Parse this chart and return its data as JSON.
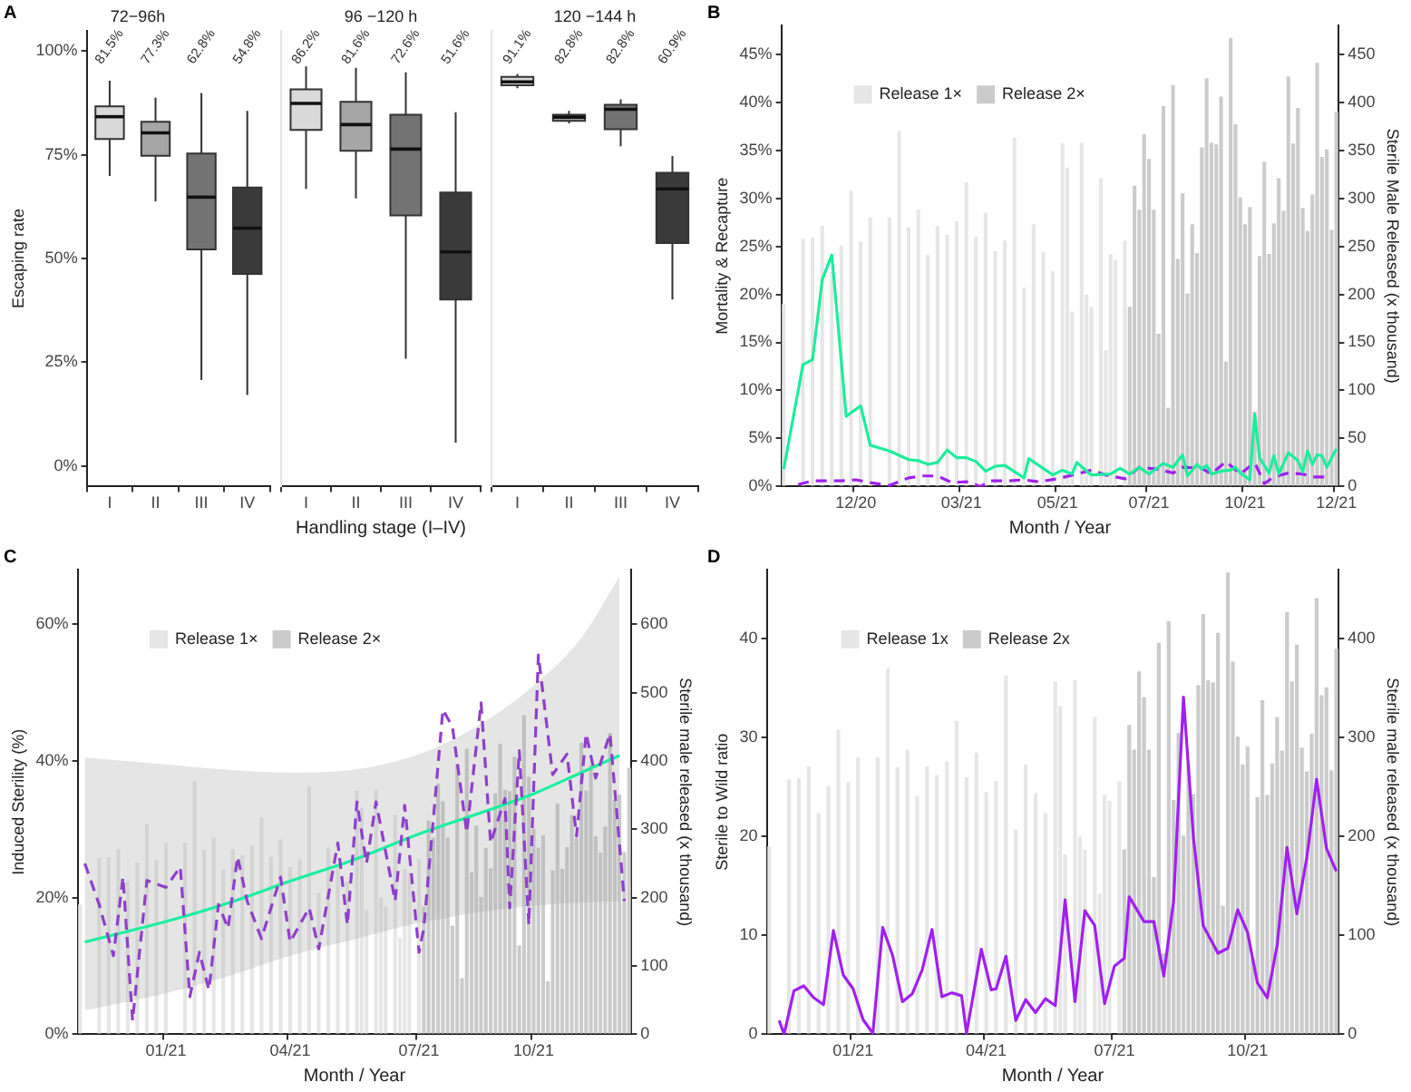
{
  "chart_data": [
    {
      "type": "box",
      "title": "72−96h",
      "annotations": [
        "A"
      ],
      "ylabel": "Escaping rate",
      "categories": [
        "I",
        "II",
        "III",
        "IV"
      ],
      "colors": [
        "#d9d9d9",
        "#a6a6a6",
        "#737373",
        "#3a3a3a"
      ],
      "ylim": [
        -5,
        105
      ],
      "yticks": [
        {
          "value": 0,
          "label": "0%"
        },
        {
          "value": 25,
          "label": "25%"
        },
        {
          "value": 50,
          "label": "50%"
        },
        {
          "value": 75,
          "label": "75%"
        },
        {
          "value": 100,
          "label": "100%"
        }
      ],
      "value_labels": [
        "81.5%",
        "77.3%",
        "62.8%",
        "54.8%"
      ],
      "boxes": [
        {
          "low": 69.9,
          "q1": 78.8,
          "median": 84.2,
          "q3": 86.7,
          "high": 92.9
        },
        {
          "low": 63.8,
          "q1": 74.8,
          "median": 80.3,
          "q3": 83,
          "high": 88.8
        },
        {
          "low": 20.7,
          "q1": 52.2,
          "median": 64.8,
          "q3": 75.3,
          "high": 89.9
        },
        {
          "low": 17.1,
          "q1": 46.3,
          "median": 57.3,
          "q3": 67.1,
          "high": 85.6
        }
      ]
    },
    {
      "type": "box",
      "title": "96 −120 h",
      "xlabel": "Handling stage (I–IV)",
      "tick_labels": "x",
      "categories": [
        "I",
        "II",
        "III",
        "IV"
      ],
      "colors": [
        "#d9d9d9",
        "#a6a6a6",
        "#737373",
        "#3a3a3a"
      ],
      "ylim": [
        -5,
        105
      ],
      "value_labels": [
        "86.2%",
        "81.6%",
        "72.6%",
        "51.6%"
      ],
      "boxes": [
        {
          "low": 66.8,
          "q1": 81,
          "median": 87.4,
          "q3": 90.8,
          "high": 96.3
        },
        {
          "low": 64.5,
          "q1": 76,
          "median": 82.3,
          "q3": 87.8,
          "high": 96
        },
        {
          "low": 25.8,
          "q1": 60.4,
          "median": 76.4,
          "q3": 84.7,
          "high": 94.9
        },
        {
          "low": 5.6,
          "q1": 40.1,
          "median": 51.6,
          "q3": 65.9,
          "high": 85.3
        }
      ]
    },
    {
      "type": "box",
      "title": "120 −144 h",
      "tick_labels": "x",
      "categories": [
        "I",
        "II",
        "III",
        "IV"
      ],
      "colors": [
        "#d9d9d9",
        "#a6a6a6",
        "#737373",
        "#3a3a3a"
      ],
      "ylim": [
        -5,
        105
      ],
      "value_labels": [
        "91.1%",
        "82.8%",
        "82.8%",
        "60.9%"
      ],
      "boxes": [
        {
          "low": 91.1,
          "q1": 91.8,
          "median": 92.6,
          "q3": 93.8,
          "high": 94.5
        },
        {
          "low": 82.6,
          "q1": 83.2,
          "median": 84.1,
          "q3": 84.7,
          "high": 85.6
        },
        {
          "low": 77.1,
          "q1": 81.2,
          "median": 86,
          "q3": 87.1,
          "high": 88.4
        },
        {
          "low": 40.1,
          "q1": 53.7,
          "median": 66.8,
          "q3": 70.7,
          "high": 74.7
        }
      ]
    },
    {
      "type": "bar",
      "annotations": [
        "B"
      ],
      "xlabel": "Month / Year",
      "ylabel": "Mortality & Recapture",
      "y2label": "Sterile Male Released (x thousand)",
      "legend": "top left",
      "ylim": [
        0,
        48
      ],
      "yticks": [
        {
          "value": 0,
          "label": "0%"
        },
        {
          "value": 5,
          "label": "5%"
        },
        {
          "value": 10,
          "label": "10%"
        },
        {
          "value": 15,
          "label": "15%"
        },
        {
          "value": 20,
          "label": "20%"
        },
        {
          "value": 25,
          "label": "25%"
        },
        {
          "value": 30,
          "label": "30%"
        },
        {
          "value": 35,
          "label": "35%"
        },
        {
          "value": 40,
          "label": "40%"
        },
        {
          "value": 45,
          "label": "45%"
        }
      ],
      "y2lim": [
        0,
        480
      ],
      "y2ticks": [
        0,
        50,
        100,
        150,
        200,
        250,
        300,
        350,
        400,
        450
      ],
      "categories": [
        null,
        null,
        null,
        null,
        null,
        null,
        null,
        null,
        null,
        null,
        null,
        null,
        null,
        null,
        null,
        "12/20",
        null,
        null,
        null,
        null,
        null,
        null,
        null,
        null,
        null,
        null,
        null,
        null,
        null,
        null,
        null,
        null,
        null,
        null,
        null,
        null,
        null,
        "03/21",
        null,
        null,
        null,
        null,
        null,
        null,
        null,
        null,
        null,
        null,
        null,
        null,
        null,
        null,
        null,
        null,
        null,
        null,
        null,
        "05/21",
        null,
        null,
        null,
        null,
        null,
        null,
        null,
        null,
        null,
        null,
        null,
        null,
        null,
        null,
        null,
        null,
        null,
        null,
        "07/21",
        null,
        null,
        null,
        null,
        null,
        null,
        null,
        null,
        null,
        null,
        null,
        null,
        null,
        null,
        null,
        null,
        null,
        null,
        null,
        "10/21",
        null,
        null,
        null,
        null,
        null,
        null,
        null,
        null,
        null,
        null,
        null,
        null,
        null,
        null,
        null,
        null,
        null,
        null,
        "12/21"
      ],
      "series": [
        {
          "name": "Release 1×",
          "type": "bar",
          "axis": "y2",
          "color": "#e6e6e6",
          "values": [
            190,
            null,
            null,
            null,
            258,
            null,
            259,
            null,
            271,
            null,
            224,
            null,
            251,
            null,
            308,
            null,
            255,
            null,
            280,
            null,
            null,
            null,
            280,
            null,
            370,
            null,
            270,
            null,
            288,
            null,
            241,
            null,
            271,
            null,
            262,
            null,
            276,
            null,
            317,
            null,
            260,
            null,
            285,
            null,
            245,
            null,
            256,
            null,
            363,
            null,
            207,
            null,
            273,
            null,
            244,
            null,
            224,
            null,
            357,
            332,
            182,
            null,
            358,
            200,
            187,
            null,
            321,
            142,
            242,
            236,
            null,
            256,
            null,
            null,
            null,
            null,
            null,
            null,
            null,
            null,
            null,
            null,
            null,
            null,
            null,
            null,
            null,
            null,
            null,
            null,
            null,
            null,
            null,
            null,
            null,
            null,
            null,
            null,
            null,
            null,
            null,
            null,
            null,
            null,
            null,
            null,
            null,
            null,
            null,
            null,
            null,
            null,
            null,
            null,
            null,
            null
          ]
        },
        {
          "name": "Release 2×",
          "type": "bar",
          "axis": "y2",
          "color": "#cbcbcb",
          "values": [
            null,
            null,
            null,
            null,
            null,
            null,
            null,
            null,
            null,
            null,
            null,
            null,
            null,
            null,
            null,
            null,
            null,
            null,
            null,
            null,
            null,
            null,
            null,
            null,
            null,
            null,
            null,
            null,
            null,
            null,
            null,
            null,
            null,
            null,
            null,
            null,
            null,
            null,
            null,
            null,
            null,
            null,
            null,
            null,
            null,
            null,
            null,
            null,
            null,
            null,
            null,
            null,
            null,
            null,
            null,
            null,
            null,
            null,
            null,
            null,
            null,
            null,
            null,
            null,
            null,
            null,
            null,
            null,
            null,
            null,
            null,
            null,
            187,
            313,
            288,
            367,
            341,
            288,
            159,
            396,
            82,
            418,
            237,
            305,
            201,
            273,
            243,
            353,
            425,
            358,
            356,
            406,
            130,
            467,
            377,
            301,
            273,
            291,
            78,
            240,
            338,
            242,
            274,
            321,
            287,
            427,
            357,
            394,
            290,
            266,
            304,
            441,
            343,
            351,
            267,
            390
          ]
        },
        {
          "type": "line",
          "color": "#1ded9c",
          "values": [
            1.8,
            null,
            null,
            null,
            12.7,
            null,
            13.2,
            null,
            21.5,
            null,
            24.1,
            null,
            null,
            7.3,
            null,
            null,
            8.4,
            null,
            4.3,
            null,
            null,
            null,
            3.7,
            null,
            null,
            null,
            2.8,
            null,
            2.7,
            null,
            2.3,
            null,
            2.5,
            null,
            3.8,
            null,
            3.0,
            null,
            3.0,
            null,
            2.6,
            null,
            1.6,
            null,
            2.1,
            null,
            2.2,
            null,
            null,
            null,
            0.9,
            2.9,
            null,
            null,
            null,
            null,
            1.2,
            null,
            1.7,
            null,
            1.3,
            2.5,
            null,
            null,
            1.2,
            null,
            null,
            null,
            1.3,
            null,
            1.9,
            null,
            1.3,
            null,
            2.0,
            null,
            1.3,
            null,
            null,
            2.4,
            null,
            2.0,
            null,
            3.3,
            1.1,
            null,
            2.3,
            1.8,
            2.2,
            1.3,
            null,
            1.6,
            null,
            1.7,
            2.0,
            1.4,
            null,
            0.7,
            7.5,
            3.0,
            null,
            1.4,
            3.2,
            1.3,
            null,
            3.5,
            null,
            2.7,
            1.5,
            3.7,
            2.3,
            3.3,
            3.2,
            2.0,
            null,
            3.9
          ]
        },
        {
          "type": "line",
          "color": "#a020f0",
          "line_style": "dashed",
          "values": [
            null,
            null,
            null,
            0.2,
            null,
            null,
            0.6,
            null,
            null,
            0.6,
            null,
            null,
            0.6,
            null,
            null,
            0.7,
            null,
            null,
            0.4,
            null,
            null,
            null,
            0.1,
            null,
            null,
            null,
            0.9,
            null,
            null,
            1.1,
            null,
            null,
            1.1,
            null,
            null,
            0.4,
            null,
            null,
            0.5,
            null,
            null,
            0.0,
            null,
            0.6,
            null,
            null,
            null,
            0.6,
            null,
            null,
            0.7,
            null,
            null,
            0.5,
            null,
            null,
            null,
            0.8,
            null,
            null,
            null,
            1.3,
            null,
            null,
            1.7,
            null,
            null,
            1.2,
            null,
            null,
            null,
            0.8,
            null,
            null,
            2.0,
            null,
            null,
            null,
            1.8,
            null,
            null,
            1.4,
            null,
            2.0,
            null,
            null,
            null,
            1.9,
            null,
            1.3,
            null,
            null,
            2.6,
            null,
            null,
            1.3,
            null,
            null,
            2.5,
            null,
            0.3,
            null,
            1.0,
            null,
            null,
            1.4,
            null,
            null,
            1.3,
            null,
            1.0,
            null,
            null,
            1.0,
            null,
            null
          ]
        }
      ]
    },
    {
      "type": "bar",
      "annotations": [
        "C"
      ],
      "xlabel": "Month / Year",
      "ylabel": "Induced Sterility (%)",
      "y2label": "Sterile male released (x thousand)",
      "legend": "top left",
      "ylim": [
        0,
        68
      ],
      "yticks": [
        {
          "value": 0,
          "label": "0%"
        },
        {
          "value": 20,
          "label": "20%"
        },
        {
          "value": 40,
          "label": "40%"
        },
        {
          "value": 60,
          "label": "60%"
        }
      ],
      "y2lim": [
        0,
        680
      ],
      "y2ticks": [
        0,
        100,
        200,
        300,
        400,
        500,
        600
      ],
      "categories": [
        null,
        null,
        null,
        null,
        null,
        null,
        null,
        null,
        null,
        null,
        null,
        null,
        null,
        null,
        null,
        null,
        null,
        null,
        "01/21",
        null,
        null,
        null,
        null,
        null,
        null,
        null,
        null,
        null,
        null,
        null,
        null,
        null,
        null,
        null,
        null,
        null,
        null,
        null,
        null,
        null,
        null,
        null,
        null,
        null,
        "04/21",
        null,
        null,
        null,
        null,
        null,
        null,
        null,
        null,
        null,
        null,
        null,
        null,
        null,
        null,
        null,
        null,
        null,
        null,
        null,
        null,
        null,
        null,
        null,
        null,
        null,
        null,
        "07/21",
        null,
        null,
        null,
        null,
        null,
        null,
        null,
        null,
        null,
        null,
        null,
        null,
        null,
        null,
        null,
        null,
        null,
        null,
        null,
        null,
        null,
        null,
        null,
        "10/21",
        null,
        null,
        null,
        null,
        null,
        null,
        null,
        null,
        null,
        null,
        null,
        null,
        null,
        null,
        null,
        null,
        null,
        null,
        null,
        null
      ],
      "series": [
        {
          "name": "Release 1×",
          "type": "bar",
          "axis": "y2",
          "color": "#e6e6e6",
          "values": [
            190,
            null,
            null,
            null,
            258,
            null,
            259,
            null,
            271,
            null,
            224,
            null,
            251,
            null,
            308,
            null,
            255,
            null,
            280,
            null,
            null,
            null,
            280,
            null,
            370,
            null,
            270,
            null,
            288,
            null,
            241,
            null,
            271,
            null,
            262,
            null,
            276,
            null,
            317,
            null,
            260,
            null,
            285,
            null,
            245,
            null,
            256,
            null,
            363,
            null,
            207,
            null,
            273,
            null,
            244,
            null,
            224,
            null,
            357,
            332,
            182,
            null,
            358,
            200,
            187,
            null,
            321,
            142,
            242,
            236,
            null,
            256,
            null,
            null,
            null,
            null,
            null,
            null,
            null,
            null,
            null,
            null,
            null,
            null,
            null,
            null,
            null,
            null,
            null,
            null,
            null,
            null,
            null,
            null,
            null,
            null,
            null,
            null,
            null,
            null,
            null,
            null,
            null,
            null,
            null,
            null,
            null,
            null,
            null,
            null,
            null,
            null,
            null,
            null,
            null,
            null
          ]
        },
        {
          "name": "Release 2×",
          "type": "bar",
          "axis": "y2",
          "color": "#cbcbcb",
          "values": [
            null,
            null,
            null,
            null,
            null,
            null,
            null,
            null,
            null,
            null,
            null,
            null,
            null,
            null,
            null,
            null,
            null,
            null,
            null,
            null,
            null,
            null,
            null,
            null,
            null,
            null,
            null,
            null,
            null,
            null,
            null,
            null,
            null,
            null,
            null,
            null,
            null,
            null,
            null,
            null,
            null,
            null,
            null,
            null,
            null,
            null,
            null,
            null,
            null,
            null,
            null,
            null,
            null,
            null,
            null,
            null,
            null,
            null,
            null,
            null,
            null,
            null,
            null,
            null,
            null,
            null,
            null,
            null,
            null,
            null,
            null,
            null,
            187,
            313,
            288,
            367,
            341,
            288,
            159,
            396,
            82,
            418,
            237,
            305,
            201,
            273,
            243,
            353,
            425,
            358,
            356,
            406,
            130,
            467,
            377,
            301,
            273,
            291,
            78,
            240,
            338,
            242,
            274,
            321,
            287,
            427,
            357,
            394,
            290,
            266,
            304,
            441,
            343,
            351,
            267,
            390
          ]
        },
        {
          "type": "line",
          "color": "#8f3fc9",
          "line_style": "dashed",
          "values": [
            null,
            25,
            null,
            null,
            19,
            null,
            null,
            11.5,
            null,
            23,
            null,
            2,
            null,
            null,
            22.5,
            null,
            null,
            null,
            21.5,
            null,
            null,
            24.5,
            null,
            5.5,
            null,
            12,
            null,
            6.5,
            null,
            19,
            null,
            15.5,
            null,
            26,
            null,
            19.5,
            null,
            null,
            14,
            null,
            null,
            null,
            23,
            null,
            13.5,
            null,
            null,
            null,
            18.5,
            null,
            12.5,
            null,
            null,
            null,
            28,
            null,
            16,
            null,
            34,
            null,
            25,
            null,
            34,
            null,
            null,
            null,
            19.5,
            null,
            33.5,
            null,
            null,
            12,
            15.5,
            null,
            null,
            null,
            47.5,
            null,
            45,
            null,
            null,
            29.5,
            null,
            null,
            48.5,
            null,
            28,
            null,
            null,
            34.5,
            18.5,
            null,
            41.5,
            null,
            16,
            null,
            55.5,
            null,
            null,
            38,
            null,
            null,
            41,
            null,
            29,
            null,
            44,
            null,
            37.5,
            null,
            null,
            44,
            null,
            null,
            19.5,
            null
          ]
        },
        {
          "type": "line",
          "color": "#19f0a0",
          "values": [
            null,
            13.5,
            null,
            null,
            null,
            null,
            null,
            null,
            null,
            null,
            null,
            null,
            null,
            null,
            null,
            null,
            null,
            null,
            16.5,
            null,
            null,
            null,
            null,
            null,
            null,
            null,
            null,
            null,
            null,
            null,
            null,
            19.2,
            null,
            null,
            null,
            null,
            null,
            null,
            null,
            null,
            null,
            null,
            null,
            null,
            22.4,
            null,
            null,
            null,
            null,
            null,
            null,
            null,
            null,
            null,
            null,
            null,
            null,
            null,
            25.7,
            null,
            null,
            null,
            null,
            null,
            null,
            null,
            null,
            null,
            null,
            null,
            null,
            29.3,
            null,
            null,
            null,
            null,
            null,
            null,
            null,
            null,
            null,
            null,
            null,
            32.2,
            null,
            null,
            null,
            null,
            null,
            null,
            null,
            null,
            null,
            null,
            null,
            35.2,
            null,
            null,
            null,
            null,
            null,
            null,
            null,
            null,
            null,
            38.3,
            null,
            null,
            null,
            null,
            null,
            null,
            null,
            40.8,
            null,
            null
          ],
          "lower": [
            null,
            3.5,
            null,
            null,
            null,
            null,
            null,
            null,
            null,
            null,
            null,
            null,
            null,
            null,
            null,
            null,
            null,
            null,
            6,
            null,
            null,
            null,
            null,
            null,
            null,
            null,
            null,
            null,
            null,
            null,
            null,
            8.5,
            null,
            null,
            null,
            null,
            null,
            null,
            null,
            null,
            null,
            null,
            null,
            null,
            11.5,
            null,
            null,
            null,
            null,
            null,
            null,
            null,
            null,
            null,
            null,
            null,
            null,
            null,
            14,
            null,
            null,
            null,
            null,
            null,
            null,
            null,
            null,
            null,
            null,
            null,
            null,
            16.3,
            null,
            null,
            null,
            null,
            null,
            null,
            null,
            null,
            null,
            null,
            null,
            17.8,
            null,
            null,
            null,
            null,
            null,
            null,
            null,
            null,
            null,
            null,
            null,
            18.8,
            null,
            null,
            null,
            null,
            null,
            null,
            null,
            null,
            null,
            19.3,
            null,
            null,
            null,
            null,
            null,
            null,
            null,
            19.5,
            null,
            null
          ],
          "upper": [
            null,
            40.5,
            null,
            null,
            null,
            null,
            null,
            null,
            null,
            null,
            null,
            null,
            null,
            null,
            null,
            null,
            null,
            null,
            39.5,
            null,
            null,
            null,
            null,
            null,
            null,
            null,
            null,
            null,
            null,
            null,
            null,
            38.7,
            null,
            null,
            null,
            null,
            null,
            null,
            null,
            null,
            null,
            null,
            null,
            null,
            38.3,
            null,
            null,
            null,
            null,
            null,
            null,
            null,
            null,
            null,
            null,
            null,
            null,
            null,
            38.8,
            null,
            null,
            null,
            null,
            null,
            null,
            null,
            null,
            null,
            null,
            null,
            null,
            41,
            null,
            null,
            null,
            null,
            null,
            null,
            null,
            null,
            null,
            null,
            null,
            45,
            null,
            null,
            null,
            null,
            null,
            null,
            null,
            null,
            null,
            null,
            null,
            51,
            null,
            null,
            null,
            null,
            null,
            null,
            null,
            null,
            null,
            58,
            null,
            null,
            null,
            null,
            null,
            null,
            null,
            67,
            null,
            null
          ]
        }
      ]
    },
    {
      "type": "bar",
      "annotations": [
        "D"
      ],
      "xlabel": "Month / Year",
      "ylabel": "Sterile to Wild ratio",
      "y2label": "Sterile male released (x thousand)",
      "legend": "top left",
      "ylim": [
        0,
        47
      ],
      "yticks": [
        0,
        10,
        20,
        30,
        40
      ],
      "y2lim": [
        0,
        470
      ],
      "y2ticks": [
        0,
        100,
        200,
        300,
        400
      ],
      "categories": [
        null,
        null,
        null,
        null,
        null,
        null,
        null,
        null,
        null,
        null,
        null,
        null,
        null,
        null,
        null,
        null,
        null,
        "01/21",
        null,
        null,
        null,
        null,
        null,
        null,
        null,
        null,
        null,
        null,
        null,
        null,
        null,
        null,
        null,
        null,
        null,
        null,
        null,
        null,
        null,
        null,
        null,
        null,
        null,
        null,
        "04/21",
        null,
        null,
        null,
        null,
        null,
        null,
        null,
        null,
        null,
        null,
        null,
        null,
        null,
        null,
        null,
        null,
        null,
        null,
        null,
        null,
        null,
        null,
        null,
        null,
        null,
        "07/21",
        null,
        null,
        null,
        null,
        null,
        null,
        null,
        null,
        null,
        null,
        null,
        null,
        null,
        null,
        null,
        null,
        null,
        null,
        null,
        null,
        null,
        null,
        null,
        null,
        null,
        null,
        "10/21",
        null,
        null,
        null,
        null,
        null,
        null,
        null,
        null,
        null,
        null,
        null,
        null,
        null,
        null,
        null,
        null,
        null,
        null
      ],
      "series": [
        {
          "name": "Release 1x",
          "type": "bar",
          "axis": "y2",
          "color": "#e6e6e6",
          "values": [
            190,
            null,
            null,
            null,
            258,
            null,
            259,
            null,
            271,
            null,
            224,
            null,
            251,
            null,
            308,
            null,
            255,
            null,
            280,
            null,
            null,
            null,
            280,
            null,
            370,
            null,
            270,
            null,
            288,
            null,
            241,
            null,
            271,
            null,
            262,
            null,
            276,
            null,
            317,
            null,
            260,
            null,
            285,
            null,
            245,
            null,
            256,
            null,
            363,
            null,
            207,
            null,
            273,
            null,
            244,
            null,
            224,
            null,
            357,
            332,
            182,
            null,
            358,
            200,
            187,
            null,
            321,
            142,
            242,
            236,
            null,
            256,
            null,
            null,
            null,
            null,
            null,
            null,
            null,
            null,
            null,
            null,
            null,
            null,
            null,
            null,
            null,
            null,
            null,
            null,
            null,
            null,
            null,
            null,
            null,
            null,
            null,
            null,
            null,
            null,
            null,
            null,
            null,
            null,
            null,
            null,
            null,
            null,
            null,
            null,
            null,
            null,
            null,
            null,
            null,
            null
          ]
        },
        {
          "name": "Release 2x",
          "type": "bar",
          "axis": "y2",
          "color": "#cbcbcb",
          "values": [
            null,
            null,
            null,
            null,
            null,
            null,
            null,
            null,
            null,
            null,
            null,
            null,
            null,
            null,
            null,
            null,
            null,
            null,
            null,
            null,
            null,
            null,
            null,
            null,
            null,
            null,
            null,
            null,
            null,
            null,
            null,
            null,
            null,
            null,
            null,
            null,
            null,
            null,
            null,
            null,
            null,
            null,
            null,
            null,
            null,
            null,
            null,
            null,
            null,
            null,
            null,
            null,
            null,
            null,
            null,
            null,
            null,
            null,
            null,
            null,
            null,
            null,
            null,
            null,
            null,
            null,
            null,
            null,
            null,
            null,
            null,
            null,
            187,
            313,
            288,
            367,
            341,
            288,
            159,
            396,
            82,
            418,
            237,
            305,
            201,
            273,
            243,
            353,
            425,
            358,
            356,
            406,
            130,
            467,
            377,
            301,
            273,
            291,
            78,
            240,
            338,
            242,
            274,
            321,
            287,
            427,
            357,
            394,
            290,
            266,
            304,
            441,
            343,
            351,
            267,
            390
          ]
        },
        {
          "type": "line",
          "color": "#a020f0",
          "values": [
            null,
            null,
            1.4,
            0,
            null,
            4.4,
            null,
            4.9,
            null,
            3.7,
            null,
            3.0,
            null,
            10.5,
            null,
            6.0,
            null,
            4.6,
            null,
            1.5,
            null,
            0.1,
            null,
            10.8,
            null,
            8.0,
            null,
            3.3,
            null,
            4.1,
            null,
            6.5,
            null,
            10.6,
            null,
            3.8,
            null,
            4.2,
            null,
            3.9,
            0.1,
            null,
            null,
            8.6,
            null,
            4.5,
            4.6,
            null,
            7.9,
            null,
            1.4,
            null,
            3.5,
            null,
            2.2,
            null,
            3.6,
            null,
            2.9,
            null,
            13.6,
            null,
            3.3,
            null,
            12.5,
            null,
            11.0,
            null,
            3.1,
            null,
            6.9,
            null,
            7.7,
            13.9,
            null,
            null,
            11.4,
            null,
            11.4,
            null,
            5.9,
            null,
            13.5,
            null,
            34.1,
            null,
            20.0,
            null,
            11.0,
            null,
            null,
            8.2,
            null,
            8.7,
            null,
            12.6,
            null,
            10.3,
            null,
            5.2,
            null,
            3.7,
            null,
            9.0,
            null,
            18.9,
            null,
            12.2,
            null,
            17.8,
            null,
            25.8,
            null,
            18.8,
            null,
            16.5
          ]
        }
      ]
    }
  ]
}
